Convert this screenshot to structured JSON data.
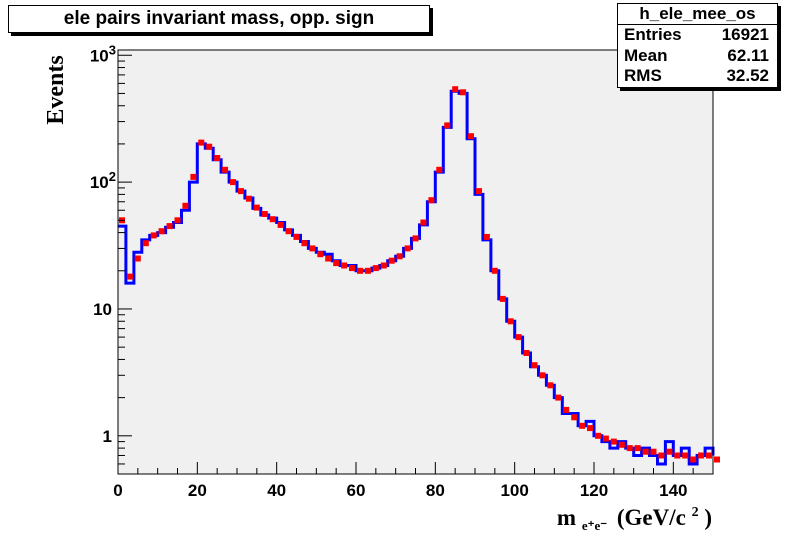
{
  "title": "ele pairs invariant mass, opp. sign",
  "stats": {
    "name": "h_ele_mee_os",
    "rows": [
      {
        "label": "Entries",
        "value": "16921"
      },
      {
        "label": "Mean",
        "value": "62.11"
      },
      {
        "label": "RMS",
        "value": "32.52"
      }
    ]
  },
  "colors": {
    "frame_background": "#f0f0f0",
    "series_blue": "#0000ff",
    "series_red": "#ff0000"
  },
  "chart_data": {
    "type": "line",
    "title": "ele pairs invariant mass, opp. sign",
    "xlabel_parts": {
      "m": "m",
      "sub": "e⁺e⁻",
      "unit": "(GeV/c",
      "sup": "2",
      "close": ")"
    },
    "ylabel": "Events",
    "xlim": [
      0,
      150
    ],
    "ylim": [
      0.5,
      1100
    ],
    "y_scale": "log",
    "x_ticks": [
      "0",
      "20",
      "40",
      "60",
      "80",
      "100",
      "120",
      "140"
    ],
    "y_ticks": [
      {
        "value": 1,
        "label": "1"
      },
      {
        "value": 10,
        "label": "10"
      },
      {
        "value": 100,
        "label": "10",
        "exp": "2"
      },
      {
        "value": 1000,
        "label": "10",
        "exp": "3"
      }
    ],
    "grid": false,
    "series": [
      {
        "style": "histogram",
        "color": "#0000ff",
        "x": [
          0,
          2,
          4,
          6,
          8,
          10,
          12,
          14,
          16,
          18,
          20,
          22,
          24,
          26,
          28,
          30,
          32,
          34,
          36,
          38,
          40,
          42,
          44,
          46,
          48,
          50,
          52,
          54,
          56,
          58,
          60,
          62,
          64,
          66,
          68,
          70,
          72,
          74,
          76,
          78,
          80,
          82,
          84,
          86,
          88,
          90,
          92,
          94,
          96,
          98,
          100,
          102,
          104,
          106,
          108,
          110,
          112,
          114,
          116,
          118,
          120,
          122,
          124,
          126,
          128,
          130,
          132,
          134,
          136,
          138,
          140,
          142,
          144,
          146,
          148,
          150
        ],
        "values": [
          45,
          16,
          28,
          35,
          38,
          40,
          44,
          48,
          60,
          100,
          200,
          185,
          150,
          120,
          100,
          85,
          75,
          62,
          55,
          52,
          48,
          42,
          38,
          34,
          30,
          28,
          27,
          24,
          22,
          22,
          20,
          20,
          21,
          22,
          24,
          26,
          30,
          36,
          46,
          70,
          120,
          270,
          520,
          500,
          220,
          80,
          35,
          20,
          12,
          8,
          6,
          4.5,
          3.5,
          3,
          2.5,
          2,
          1.5,
          1.5,
          1.2,
          1.3,
          1,
          0.9,
          0.8,
          0.9,
          0.8,
          0.7,
          0.8,
          0.7,
          0.6,
          0.9,
          0.7,
          0.8,
          0.6,
          0.7,
          0.8,
          0.7
        ]
      },
      {
        "style": "markers",
        "color": "#ff0000",
        "x": [
          0,
          2,
          4,
          6,
          8,
          10,
          12,
          14,
          16,
          18,
          20,
          22,
          24,
          26,
          28,
          30,
          32,
          34,
          36,
          38,
          40,
          42,
          44,
          46,
          48,
          50,
          52,
          54,
          56,
          58,
          60,
          62,
          64,
          66,
          68,
          70,
          72,
          74,
          76,
          78,
          80,
          82,
          84,
          86,
          88,
          90,
          92,
          94,
          96,
          98,
          100,
          102,
          104,
          106,
          108,
          110,
          112,
          114,
          116,
          118,
          120,
          122,
          124,
          126,
          128,
          130,
          132,
          134,
          136,
          138,
          140,
          142,
          144,
          146,
          148,
          150
        ],
        "values": [
          50,
          18,
          25,
          33,
          38,
          41,
          45,
          50,
          65,
          110,
          205,
          190,
          155,
          125,
          100,
          85,
          74,
          63,
          56,
          51,
          46,
          41,
          37,
          33,
          30,
          27,
          25,
          23,
          22,
          21,
          20,
          20,
          21,
          22,
          24,
          26,
          30,
          36,
          48,
          72,
          125,
          280,
          540,
          510,
          230,
          85,
          37,
          20,
          12,
          8,
          6,
          4.5,
          3.6,
          3,
          2.5,
          2,
          1.6,
          1.4,
          1.2,
          1.15,
          1,
          0.95,
          0.9,
          0.85,
          0.8,
          0.8,
          0.75,
          0.75,
          0.7,
          0.75,
          0.7,
          0.7,
          0.65,
          0.7,
          0.7,
          0.65
        ]
      }
    ]
  }
}
